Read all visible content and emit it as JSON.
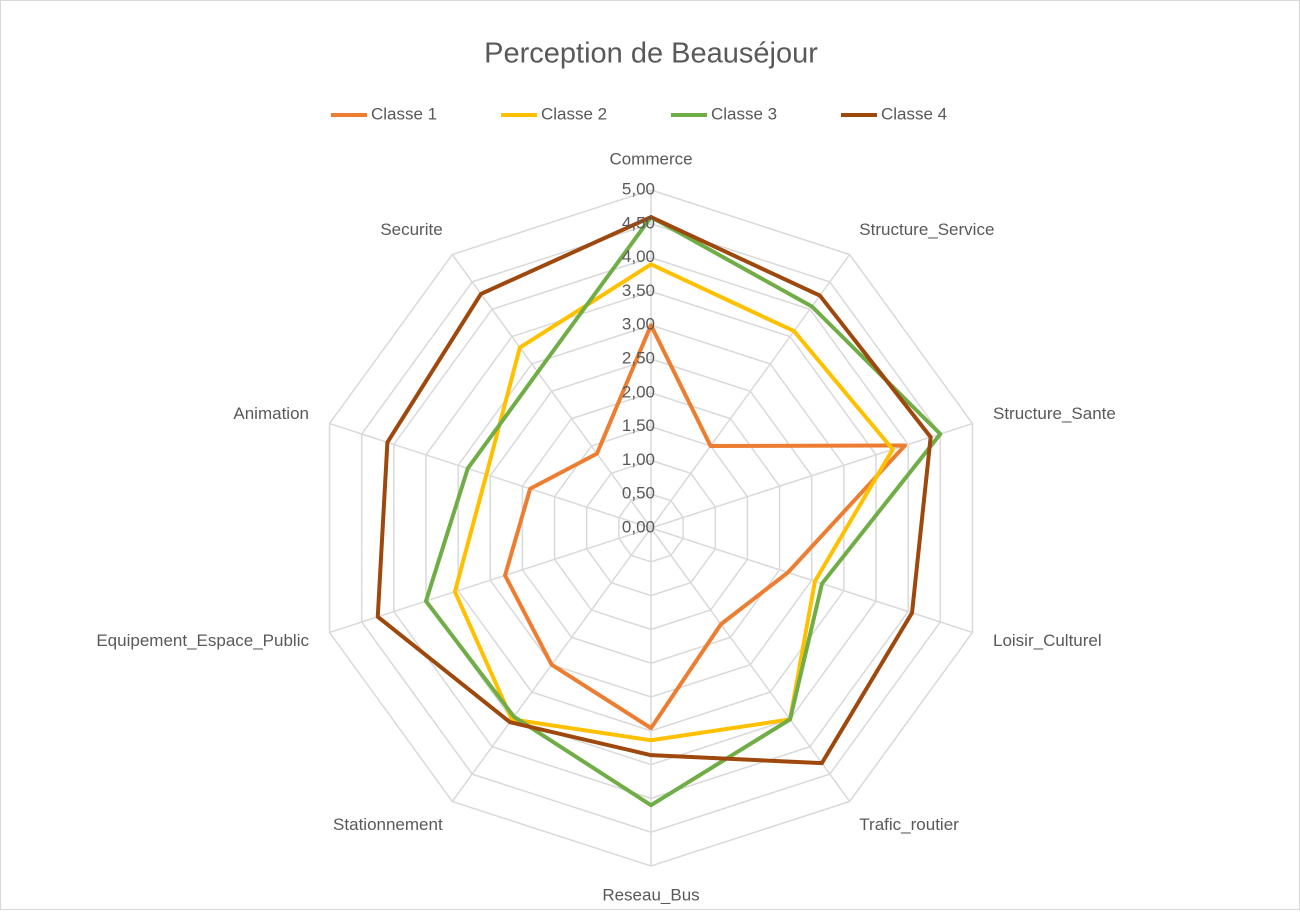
{
  "chart_data": {
    "type": "radar",
    "title": "Perception de Beauséjour",
    "categories": [
      "Commerce",
      "Structure_Service",
      "Structure_Sante",
      "Loisir_Culturel",
      "Trafic_routier",
      "Reseau_Bus",
      "Stationnement",
      "Equipement_Espace_Public",
      "Animation",
      "Securite"
    ],
    "series": [
      {
        "name": "Classe 1",
        "color": "#ed7d31",
        "values": [
          3.0,
          1.5,
          3.95,
          2.13,
          1.76,
          2.96,
          2.5,
          2.27,
          1.88,
          1.36
        ]
      },
      {
        "name": "Classe 2",
        "color": "#ffc000",
        "values": [
          3.9,
          3.6,
          3.76,
          2.55,
          3.5,
          3.14,
          3.5,
          3.05,
          2.56,
          3.3
        ]
      },
      {
        "name": "Classe 3",
        "color": "#70ad47",
        "values": [
          4.6,
          4.05,
          4.5,
          2.66,
          3.5,
          4.1,
          3.45,
          3.5,
          2.85,
          2.85
        ]
      },
      {
        "name": "Classe 4",
        "color": "#9e480e",
        "values": [
          4.6,
          4.25,
          4.35,
          4.06,
          4.3,
          3.36,
          3.55,
          4.25,
          4.1,
          4.28
        ]
      }
    ],
    "ylim": [
      0,
      5
    ],
    "yticks": [
      {
        "value": 0,
        "label": "0,00"
      },
      {
        "value": 0.5,
        "label": "0,50"
      },
      {
        "value": 1,
        "label": "1,00"
      },
      {
        "value": 1.5,
        "label": "1,50"
      },
      {
        "value": 2,
        "label": "2,00"
      },
      {
        "value": 2.5,
        "label": "2,50"
      },
      {
        "value": 3,
        "label": "3,00"
      },
      {
        "value": 3.5,
        "label": "3,50"
      },
      {
        "value": 4,
        "label": "4,00"
      },
      {
        "value": 4.5,
        "label": "4,50"
      },
      {
        "value": 5,
        "label": "5,00"
      }
    ],
    "grid": true,
    "legend": "top"
  }
}
